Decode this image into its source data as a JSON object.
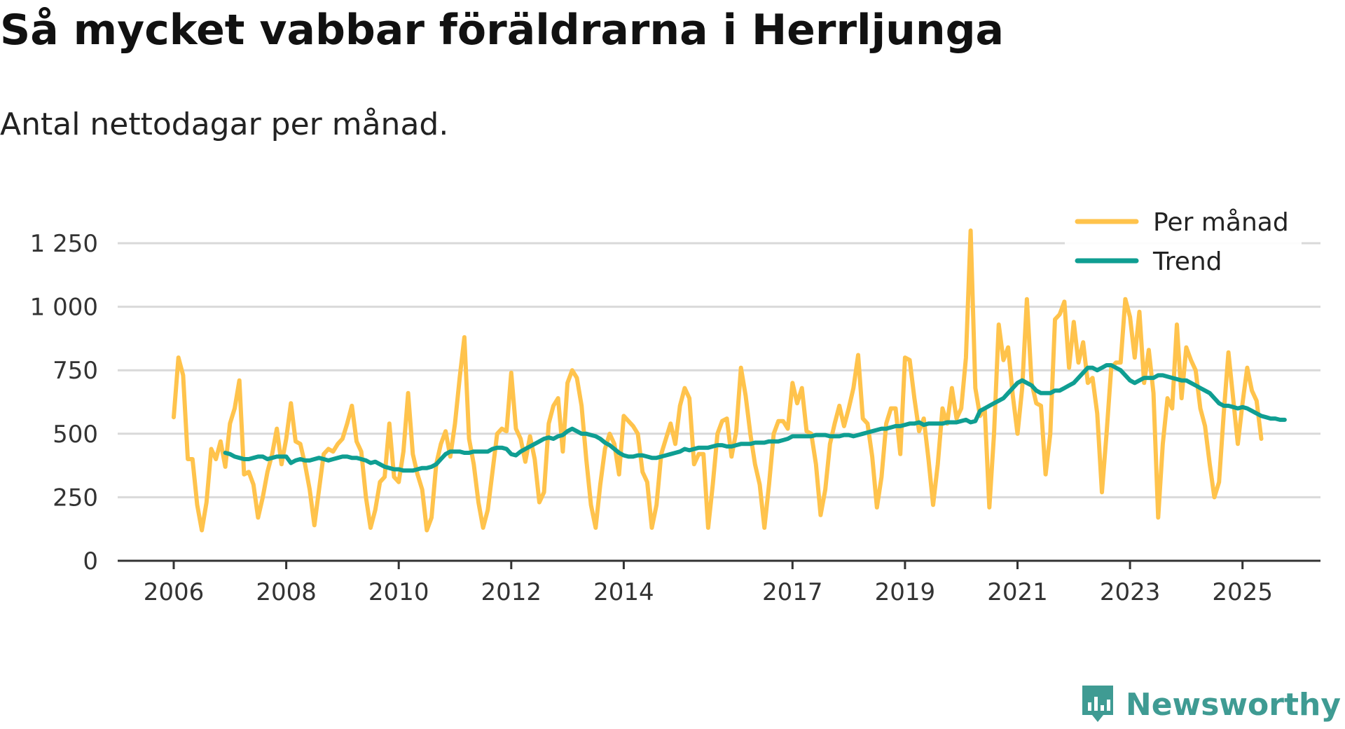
{
  "title": "Så mycket vabbar föräldrarna i Herrljunga",
  "subtitle": "Antal nettodagar per månad.",
  "brand": {
    "name": "Newsworthy",
    "logo_icon": "newsworthy-logo-icon",
    "color": "#3f9b93"
  },
  "chart_data": {
    "type": "line",
    "title": "Så mycket vabbar föräldrarna i Herrljunga",
    "subtitle": "Antal nettodagar per månad.",
    "xlabel": "",
    "ylabel": "",
    "ylim": [
      0,
      1300
    ],
    "xlim": [
      2006.0,
      2025.75
    ],
    "y_ticks": [
      0,
      250,
      500,
      750,
      1000,
      1250
    ],
    "y_tick_labels": [
      "0",
      "250",
      "500",
      "750",
      "1 000",
      "1 250"
    ],
    "x_ticks": [
      2006,
      2008,
      2010,
      2012,
      2014,
      2017,
      2019,
      2021,
      2023,
      2025
    ],
    "x_tick_labels": [
      "2006",
      "2008",
      "2010",
      "2012",
      "2014",
      "2017",
      "2019",
      "2021",
      "2023",
      "2025"
    ],
    "grid": true,
    "legend_position": "top-right",
    "series": [
      {
        "name": "Per månad",
        "color": "#ffc34c",
        "x_start": 2006.0,
        "x_step_months": 1,
        "values": [
          565,
          800,
          730,
          400,
          400,
          220,
          120,
          230,
          440,
          400,
          470,
          370,
          540,
          600,
          710,
          340,
          350,
          300,
          170,
          250,
          350,
          420,
          520,
          380,
          480,
          620,
          470,
          460,
          380,
          280,
          140,
          280,
          420,
          440,
          430,
          460,
          480,
          540,
          610,
          470,
          430,
          250,
          130,
          200,
          310,
          330,
          540,
          330,
          310,
          430,
          660,
          420,
          340,
          280,
          120,
          170,
          380,
          460,
          510,
          410,
          540,
          720,
          880,
          480,
          380,
          230,
          130,
          200,
          350,
          500,
          520,
          510,
          740,
          520,
          480,
          390,
          490,
          400,
          230,
          270,
          540,
          610,
          640,
          430,
          700,
          750,
          720,
          610,
          400,
          220,
          130,
          300,
          440,
          500,
          460,
          340,
          570,
          550,
          530,
          500,
          350,
          310,
          130,
          220,
          420,
          480,
          540,
          460,
          610,
          680,
          640,
          380,
          420,
          420,
          130,
          300,
          500,
          550,
          560,
          410,
          510,
          760,
          650,
          500,
          380,
          300,
          130,
          300,
          500,
          550,
          550,
          520,
          700,
          620,
          680,
          510,
          500,
          380,
          180,
          280,
          460,
          540,
          610,
          530,
          600,
          680,
          810,
          560,
          540,
          410,
          210,
          330,
          540,
          600,
          600,
          420,
          800,
          790,
          640,
          510,
          560,
          400,
          220,
          380,
          600,
          540,
          680,
          560,
          600,
          800,
          1300,
          680,
          570,
          600,
          210,
          500,
          930,
          790,
          840,
          650,
          500,
          680,
          1030,
          700,
          620,
          610,
          340,
          500,
          950,
          970,
          1020,
          760,
          940,
          780,
          860,
          700,
          720,
          580,
          270,
          500,
          760,
          780,
          780,
          1030,
          960,
          800,
          980,
          700,
          830,
          660,
          170,
          460,
          640,
          600,
          930,
          640,
          840,
          790,
          750,
          600,
          530,
          380,
          250,
          310,
          580,
          820,
          640,
          460,
          620,
          760,
          670,
          630,
          480
        ]
      },
      {
        "name": "Trend",
        "color": "#0f9e92",
        "x_start": 2006.9167,
        "x_step_months": 1,
        "values": [
          425,
          420,
          410,
          405,
          400,
          400,
          405,
          410,
          410,
          400,
          405,
          410,
          410,
          410,
          385,
          395,
          400,
          395,
          395,
          400,
          405,
          400,
          395,
          400,
          405,
          410,
          410,
          405,
          405,
          400,
          395,
          385,
          390,
          380,
          370,
          365,
          360,
          360,
          355,
          355,
          355,
          360,
          365,
          365,
          370,
          380,
          400,
          420,
          430,
          430,
          430,
          425,
          425,
          430,
          430,
          430,
          430,
          440,
          445,
          445,
          440,
          420,
          415,
          430,
          440,
          450,
          460,
          470,
          480,
          485,
          480,
          490,
          495,
          510,
          520,
          510,
          500,
          500,
          495,
          490,
          480,
          465,
          455,
          440,
          425,
          415,
          410,
          410,
          415,
          415,
          410,
          405,
          405,
          410,
          415,
          420,
          425,
          430,
          440,
          435,
          440,
          445,
          445,
          445,
          450,
          455,
          455,
          450,
          450,
          455,
          460,
          460,
          460,
          465,
          465,
          465,
          470,
          470,
          470,
          475,
          480,
          490,
          490,
          490,
          490,
          490,
          495,
          495,
          495,
          490,
          490,
          490,
          495,
          495,
          490,
          495,
          500,
          505,
          510,
          515,
          520,
          520,
          525,
          530,
          530,
          535,
          540,
          540,
          545,
          535,
          540,
          540,
          540,
          540,
          545,
          545,
          545,
          550,
          555,
          545,
          550,
          590,
          600,
          610,
          620,
          630,
          640,
          660,
          680,
          700,
          710,
          700,
          690,
          670,
          660,
          660,
          660,
          670,
          670,
          680,
          690,
          700,
          720,
          740,
          760,
          760,
          750,
          760,
          770,
          770,
          760,
          750,
          730,
          710,
          700,
          710,
          720,
          720,
          720,
          730,
          730,
          725,
          720,
          715,
          710,
          710,
          700,
          690,
          680,
          670,
          660,
          640,
          620,
          610,
          610,
          605,
          600,
          605,
          600,
          590,
          580,
          570,
          565,
          560,
          560,
          555,
          555
        ]
      }
    ]
  }
}
